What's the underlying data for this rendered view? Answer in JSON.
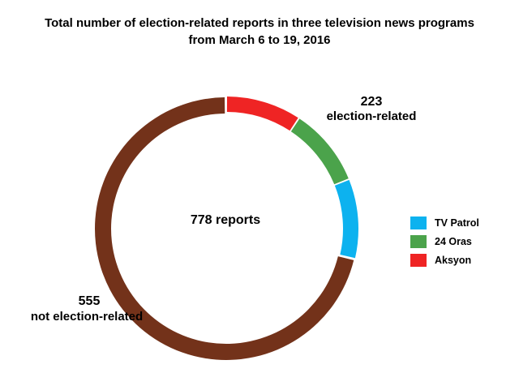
{
  "title_line1": "Total number of election-related reports  in three television news programs",
  "title_line2": "from March 6 to 19, 2016",
  "chart_data": {
    "type": "pie",
    "variant": "donut",
    "total_label": "778 reports",
    "slices": [
      {
        "name": "not election-related",
        "value": 555,
        "color": "#73321a",
        "label_value": "555",
        "label_text": "not election-related"
      },
      {
        "name": "Aksyon",
        "value": 72,
        "color": "#ef2424",
        "group": "election-related"
      },
      {
        "name": "24 Oras",
        "value": 75,
        "color": "#4ba34b",
        "group": "election-related"
      },
      {
        "name": "TV Patrol",
        "value": 76,
        "color": "#0db2ef",
        "group": "election-related"
      }
    ],
    "group_label": {
      "value": "223",
      "text": "election-related"
    },
    "legend": [
      {
        "label": "TV Patrol",
        "color": "#0db2ef"
      },
      {
        "label": "24 Oras",
        "color": "#4ba34b"
      },
      {
        "label": "Aksyon",
        "color": "#ef2424"
      }
    ],
    "legend_position": "right"
  }
}
